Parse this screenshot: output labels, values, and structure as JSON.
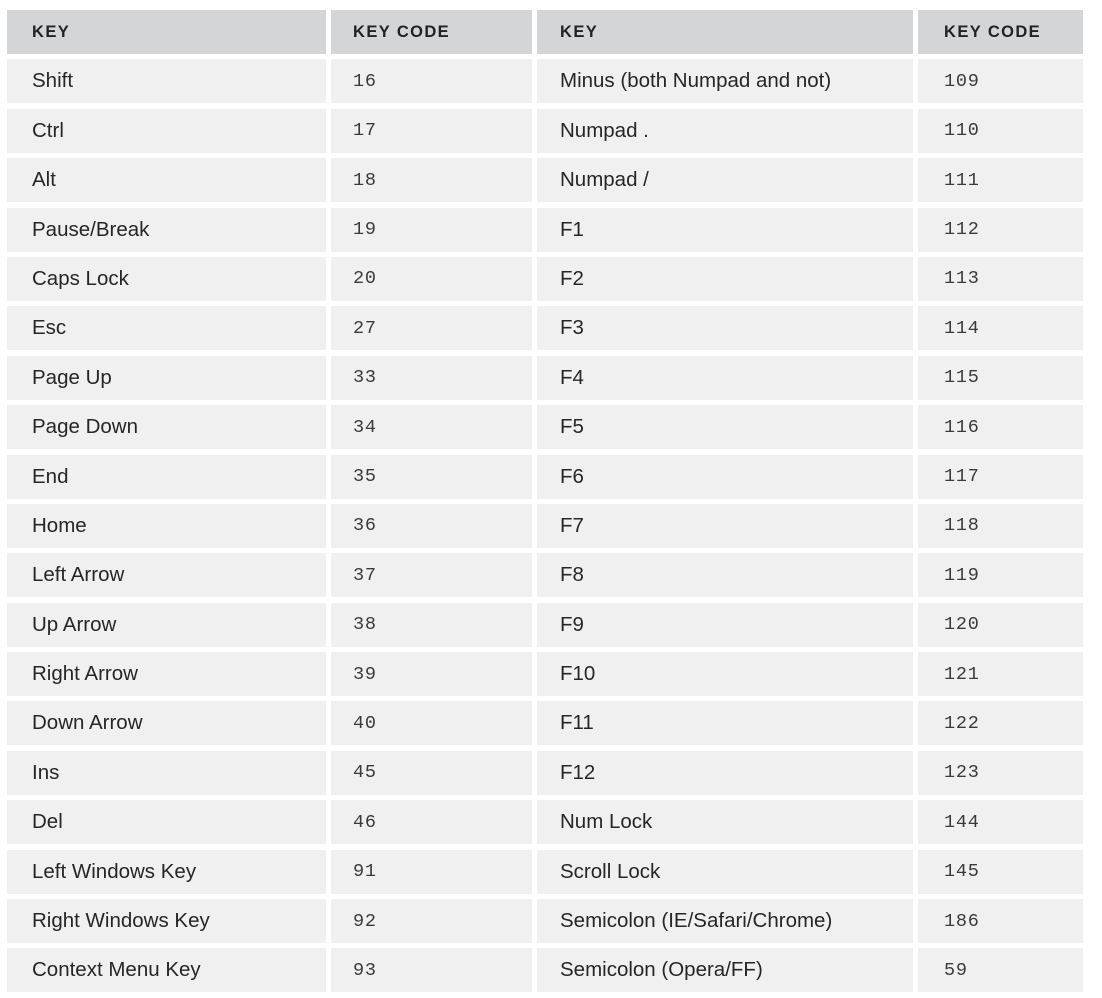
{
  "table": {
    "headers": [
      "KEY",
      "KEY CODE",
      "KEY",
      "KEY CODE"
    ],
    "rows": [
      [
        "Shift",
        "16",
        "Minus (both Numpad and not)",
        "109"
      ],
      [
        "Ctrl",
        "17",
        "Numpad .",
        "110"
      ],
      [
        "Alt",
        "18",
        "Numpad /",
        "111"
      ],
      [
        "Pause/Break",
        "19",
        "F1",
        "112"
      ],
      [
        "Caps Lock",
        "20",
        "F2",
        "113"
      ],
      [
        "Esc",
        "27",
        "F3",
        "114"
      ],
      [
        "Page Up",
        "33",
        "F4",
        "115"
      ],
      [
        "Page Down",
        "34",
        "F5",
        "116"
      ],
      [
        "End",
        "35",
        "F6",
        "117"
      ],
      [
        "Home",
        "36",
        "F7",
        "118"
      ],
      [
        "Left Arrow",
        "37",
        "F8",
        "119"
      ],
      [
        "Up Arrow",
        "38",
        "F9",
        "120"
      ],
      [
        "Right Arrow",
        "39",
        "F10",
        "121"
      ],
      [
        "Down Arrow",
        "40",
        "F11",
        "122"
      ],
      [
        "Ins",
        "45",
        "F12",
        "123"
      ],
      [
        "Del",
        "46",
        "Num Lock",
        "144"
      ],
      [
        "Left Windows Key",
        "91",
        "Scroll Lock",
        "145"
      ],
      [
        "Right Windows Key",
        "92",
        "Semicolon (IE/Safari/Chrome)",
        "186"
      ],
      [
        "Context Menu Key",
        "93",
        "Semicolon (Opera/FF)",
        "59"
      ]
    ]
  }
}
